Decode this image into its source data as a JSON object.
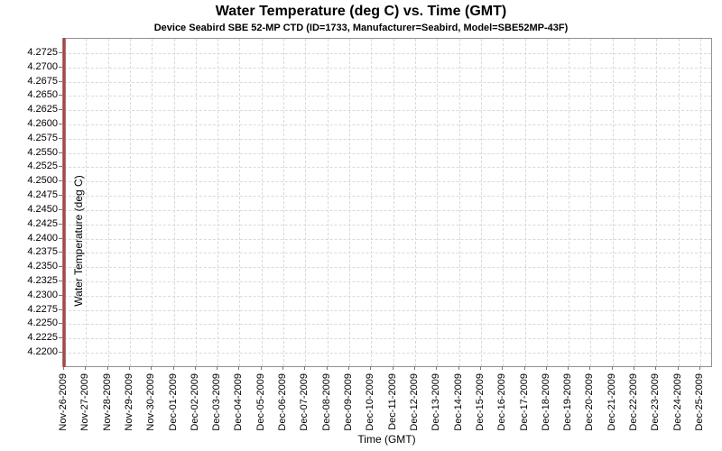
{
  "chart_data": {
    "type": "line",
    "title": "Water Temperature (deg C) vs. Time (GMT)",
    "subtitle": "Device Seabird SBE 52-MP CTD (ID=1733, Manufacturer=Seabird, Model=SBE52MP-43F)",
    "xlabel": "Time (GMT)",
    "ylabel": "Water Temperature (deg C)",
    "x_ticks": [
      "Nov-26-2009",
      "Nov-27-2009",
      "Nov-28-2009",
      "Nov-29-2009",
      "Nov-30-2009",
      "Dec-01-2009",
      "Dec-02-2009",
      "Dec-03-2009",
      "Dec-04-2009",
      "Dec-05-2009",
      "Dec-06-2009",
      "Dec-07-2009",
      "Dec-08-2009",
      "Dec-09-2009",
      "Dec-10-2009",
      "Dec-11-2009",
      "Dec-12-2009",
      "Dec-13-2009",
      "Dec-14-2009",
      "Dec-15-2009",
      "Dec-16-2009",
      "Dec-17-2009",
      "Dec-18-2009",
      "Dec-19-2009",
      "Dec-20-2009",
      "Dec-21-2009",
      "Dec-22-2009",
      "Dec-23-2009",
      "Dec-24-2009",
      "Dec-25-2009"
    ],
    "y_ticks": [
      "4.2725",
      "4.2700",
      "4.2675",
      "4.2650",
      "4.2625",
      "4.2600",
      "4.2575",
      "4.2550",
      "4.2525",
      "4.2500",
      "4.2475",
      "4.2450",
      "4.2425",
      "4.2400",
      "4.2375",
      "4.2350",
      "4.2325",
      "4.2300",
      "4.2275",
      "4.2250",
      "4.2225",
      "4.2200"
    ],
    "ylim": [
      4.2185,
      4.274
    ],
    "grid": true,
    "legend": "none",
    "series": [
      {
        "name": "Water Temperature",
        "color": "#a25050",
        "x": "Nov-26-2009",
        "y_min": 4.2185,
        "y_max": 4.274,
        "note": "All sampled data falls at the first timestamp, rendering as a single vertical red line spanning the full temperature range at the left edge of the plot."
      }
    ],
    "colors": {
      "grid": "#dadada",
      "border": "#919191",
      "series": "#a25050",
      "text": "#000000"
    }
  }
}
